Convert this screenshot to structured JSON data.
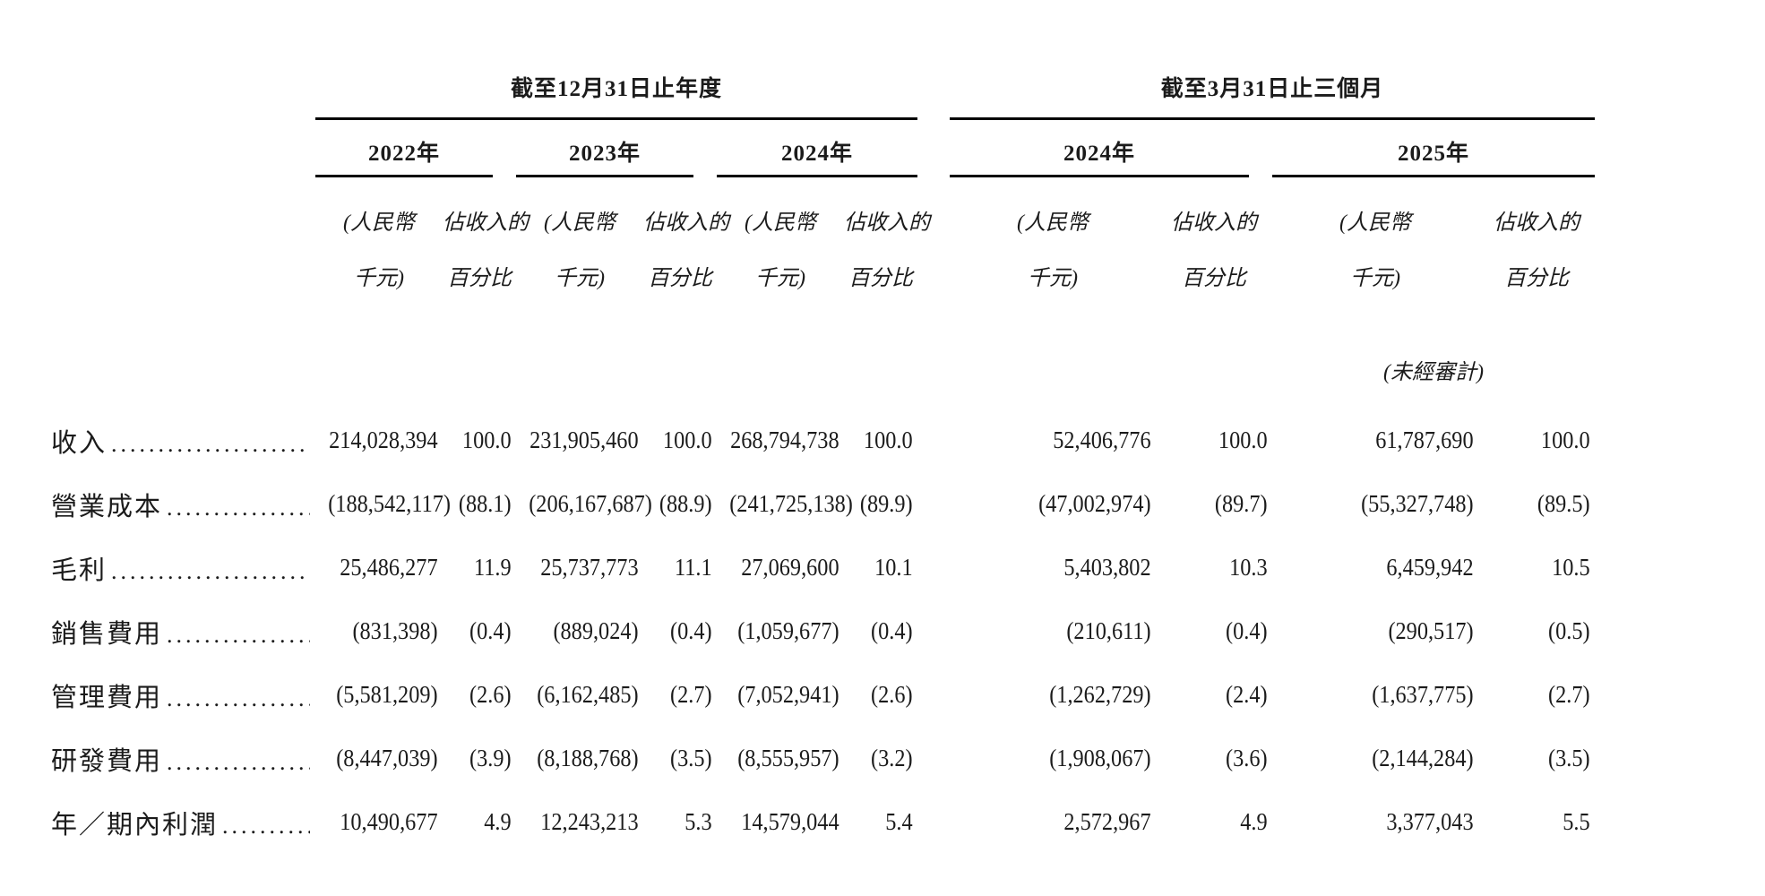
{
  "colors": {
    "text": "#1b1b1b",
    "rule": "#000000",
    "background": "#ffffff"
  },
  "table": {
    "groups": [
      {
        "title": "截至12月31日止年度",
        "years": [
          "2022年",
          "2023年",
          "2024年"
        ]
      },
      {
        "title": "截至3月31日止三個月",
        "years": [
          "2024年",
          "2025年"
        ]
      }
    ],
    "subheader": {
      "amount_line1": "(人民幣",
      "amount_line2": "千元)",
      "pct_line1": "佔收入的",
      "pct_line2": "百分比"
    },
    "note": "(未經審計)",
    "rows": [
      {
        "label": "收入",
        "values": [
          "214,028,394",
          "100.0",
          "231,905,460",
          "100.0",
          "268,794,738",
          "100.0",
          "52,406,776",
          "100.0",
          "61,787,690",
          "100.0"
        ]
      },
      {
        "label": "營業成本",
        "values": [
          "(188,542,117)",
          "(88.1)",
          "(206,167,687)",
          "(88.9)",
          "(241,725,138)",
          "(89.9)",
          "(47,002,974)",
          "(89.7)",
          "(55,327,748)",
          "(89.5)"
        ]
      },
      {
        "label": "毛利",
        "values": [
          "25,486,277",
          "11.9",
          "25,737,773",
          "11.1",
          "27,069,600",
          "10.1",
          "5,403,802",
          "10.3",
          "6,459,942",
          "10.5"
        ]
      },
      {
        "label": "銷售費用",
        "values": [
          "(831,398)",
          "(0.4)",
          "(889,024)",
          "(0.4)",
          "(1,059,677)",
          "(0.4)",
          "(210,611)",
          "(0.4)",
          "(290,517)",
          "(0.5)"
        ]
      },
      {
        "label": "管理費用",
        "values": [
          "(5,581,209)",
          "(2.6)",
          "(6,162,485)",
          "(2.7)",
          "(7,052,941)",
          "(2.6)",
          "(1,262,729)",
          "(2.4)",
          "(1,637,775)",
          "(2.7)"
        ]
      },
      {
        "label": "研發費用",
        "values": [
          "(8,447,039)",
          "(3.9)",
          "(8,188,768)",
          "(3.5)",
          "(8,555,957)",
          "(3.2)",
          "(1,908,067)",
          "(3.6)",
          "(2,144,284)",
          "(3.5)"
        ]
      },
      {
        "label": "年／期內利潤",
        "values": [
          "10,490,677",
          "4.9",
          "12,243,213",
          "5.3",
          "14,579,044",
          "5.4",
          "2,572,967",
          "4.9",
          "3,377,043",
          "5.5"
        ]
      }
    ]
  }
}
